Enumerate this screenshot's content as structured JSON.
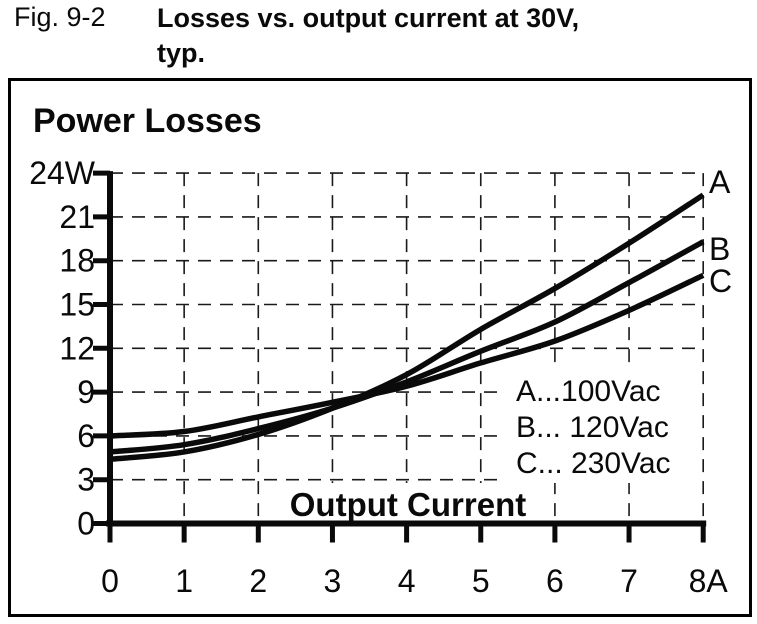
{
  "figure": {
    "fig_label": "Fig. 9-2",
    "title_line1": "Losses vs. output current at 30V,",
    "title_line2": "typ."
  },
  "chart_data": {
    "type": "line",
    "title": "Power Losses",
    "xlabel": "Output Current",
    "x": [
      0,
      1,
      2,
      3,
      4,
      5,
      6,
      7,
      8
    ],
    "x_tick_labels": [
      "0",
      "1",
      "2",
      "3",
      "4",
      "5",
      "6",
      "7",
      "8A"
    ],
    "y_ticks": [
      24,
      21,
      18,
      15,
      12,
      9,
      6,
      3,
      0
    ],
    "y_tick_labels": [
      "24W",
      "21",
      "18",
      "15",
      "12",
      "9",
      "6",
      "3",
      "0"
    ],
    "xlim": [
      0,
      8
    ],
    "ylim": [
      0,
      24
    ],
    "grid": "dashed",
    "legend_position": "inside-right-middle",
    "line_color": "#0a0a0a",
    "series": [
      {
        "label": "A",
        "legend_label": "A...100Vac",
        "values": [
          4.4,
          4.9,
          6.1,
          7.9,
          10.2,
          13.3,
          16.1,
          19.2,
          22.5
        ]
      },
      {
        "label": "B",
        "legend_label": "B... 120Vac",
        "values": [
          4.9,
          5.4,
          6.5,
          7.9,
          9.7,
          11.8,
          13.8,
          16.5,
          19.3
        ]
      },
      {
        "label": "C",
        "legend_label": "C... 230Vac",
        "values": [
          6.0,
          6.3,
          7.3,
          8.3,
          9.4,
          11.0,
          12.5,
          14.6,
          17.0
        ]
      }
    ]
  }
}
